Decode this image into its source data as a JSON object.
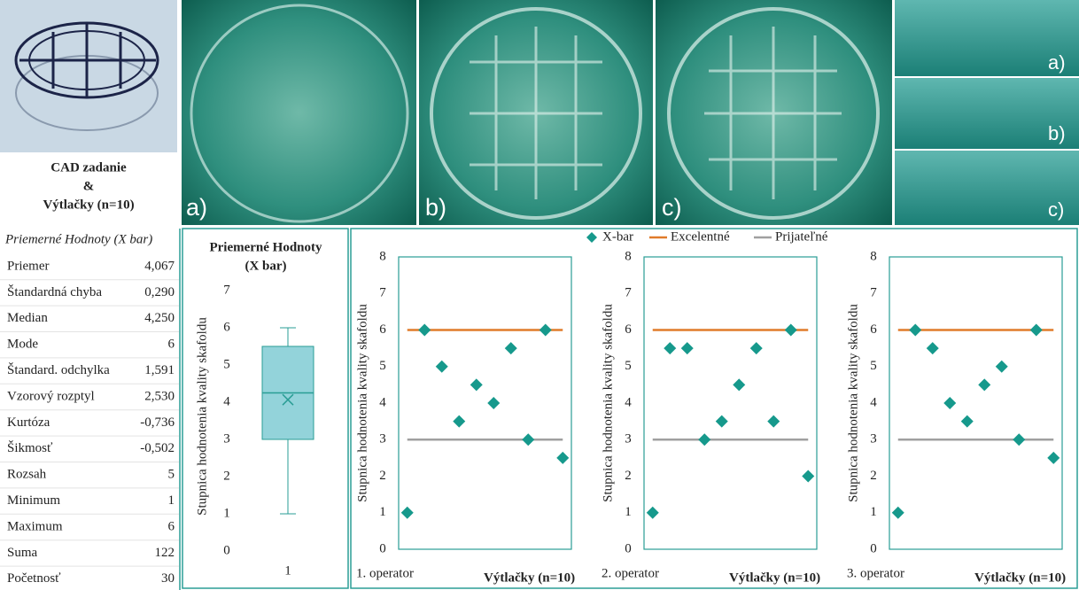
{
  "cad": {
    "title": "CAD zadanie",
    "amp": "&",
    "subtitle": "Výtlačky (n=10)"
  },
  "photos": {
    "labels": [
      "a)",
      "b)",
      "c)"
    ],
    "side_labels": [
      "a)",
      "b)",
      "c)"
    ]
  },
  "table": {
    "title": "Priemerné Hodnoty (X bar)",
    "rows": [
      [
        "Priemer",
        "4,067"
      ],
      [
        "Štandardná chyba",
        "0,290"
      ],
      [
        "Median",
        "4,250"
      ],
      [
        "Mode",
        "6"
      ],
      [
        "Štandard. odchylka",
        "1,591"
      ],
      [
        "Vzorový rozptyl",
        "2,530"
      ],
      [
        "Kurtóza",
        "-0,736"
      ],
      [
        "Šikmosť",
        "-0,502"
      ],
      [
        "Rozsah",
        "5"
      ],
      [
        "Minimum",
        "1"
      ],
      [
        "Maximum",
        "6"
      ],
      [
        "Suma",
        "122"
      ],
      [
        "Početnosť",
        "30"
      ]
    ]
  },
  "chart_data": [
    {
      "type": "box",
      "title": [
        "Priemerné Hodnoty",
        "(X bar)"
      ],
      "ylabel": "Stupnica hodnotenia kvality skafoldu",
      "categories": [
        "1"
      ],
      "min": [
        1
      ],
      "q1": [
        3
      ],
      "median": [
        4.25
      ],
      "q3": [
        5.5
      ],
      "max": [
        6
      ],
      "mean": [
        4.067
      ],
      "color": "#93d3da",
      "ylim": [
        0,
        7
      ],
      "yticks": [
        0,
        1,
        2,
        3,
        4,
        5,
        6,
        7
      ]
    },
    {
      "type": "scatter",
      "note": "1. operator",
      "xlabel": "Výtlačky (n=10)",
      "ylabel": "Stupnica hodnotenia kvality skafoldu",
      "series": [
        {
          "name": "X-bar",
          "color": "#16998c",
          "mode": "markers",
          "values": [
            1,
            6,
            5,
            3.5,
            4.5,
            4,
            5.5,
            3,
            6,
            2.5
          ]
        },
        {
          "name": "Excelentné",
          "color": "#e07b2a",
          "mode": "lines",
          "values": [
            6,
            6,
            6,
            6,
            6,
            6,
            6,
            6,
            6,
            6
          ]
        },
        {
          "name": "Prijateľné",
          "color": "#a0a0a0",
          "mode": "lines",
          "values": [
            3,
            3,
            3,
            3,
            3,
            3,
            3,
            3,
            3,
            3
          ]
        }
      ],
      "ylim": [
        0,
        8
      ],
      "yticks": [
        0,
        1,
        2,
        3,
        4,
        5,
        6,
        7,
        8
      ]
    },
    {
      "type": "scatter",
      "note": "2. operator",
      "xlabel": "Výtlačky (n=10)",
      "ylabel": "Stupnica hodnotenia kvality skafoldu",
      "series": [
        {
          "values": [
            1,
            5.5,
            5.5,
            3,
            3.5,
            4.5,
            5.5,
            3.5,
            6,
            2
          ]
        },
        {
          "values": [
            6,
            6,
            6,
            6,
            6,
            6,
            6,
            6,
            6,
            6
          ]
        },
        {
          "values": [
            3,
            3,
            3,
            3,
            3,
            3,
            3,
            3,
            3,
            3
          ]
        }
      ],
      "ylim": [
        0,
        8
      ],
      "yticks": [
        0,
        1,
        2,
        3,
        4,
        5,
        6,
        7,
        8
      ]
    },
    {
      "type": "scatter",
      "note": "3. operator",
      "xlabel": "Výtlačky (n=10)",
      "ylabel": "Stupnica hodnotenia kvality skafoldu",
      "series": [
        {
          "values": [
            1,
            6,
            5.5,
            4,
            3.5,
            4.5,
            5,
            3,
            6,
            2.5
          ]
        },
        {
          "values": [
            6,
            6,
            6,
            6,
            6,
            6,
            6,
            6,
            6,
            6
          ]
        },
        {
          "values": [
            3,
            3,
            3,
            3,
            3,
            3,
            3,
            3,
            3,
            3
          ]
        }
      ],
      "ylim": [
        0,
        8
      ],
      "yticks": [
        0,
        1,
        2,
        3,
        4,
        5,
        6,
        7,
        8
      ]
    }
  ]
}
